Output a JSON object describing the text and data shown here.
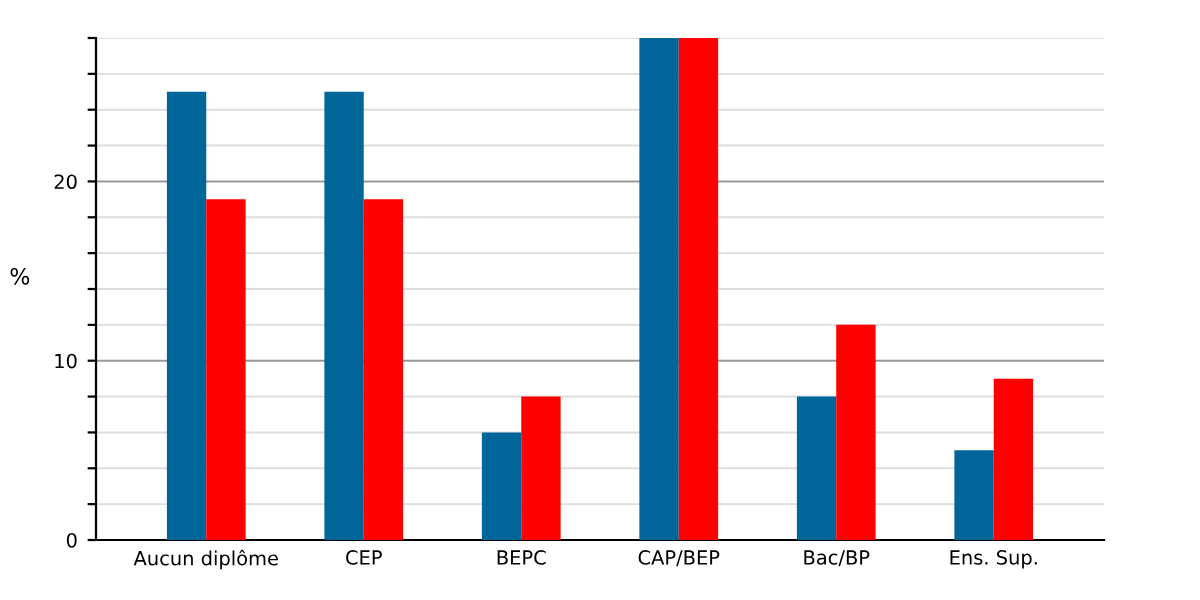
{
  "chart_data": {
    "type": "bar",
    "ylabel": "%",
    "categories": [
      "Aucun diplôme",
      "CEP",
      "BEPC",
      "CAP/BEP",
      "Bac/BP",
      "Ens. Sup."
    ],
    "series": [
      {
        "color": "#006699",
        "values": [
          25,
          25,
          6,
          28,
          8,
          5
        ]
      },
      {
        "color": "#ff0000",
        "values": [
          19,
          19,
          8,
          28,
          12,
          9
        ]
      }
    ],
    "ylim": [
      0,
      28
    ],
    "yticks": [
      0,
      {
        "value": 2,
        "label": null
      },
      {
        "value": 4,
        "label": null
      },
      {
        "value": 6,
        "label": null
      },
      {
        "value": 8,
        "label": null
      },
      10,
      {
        "value": 12,
        "label": null
      },
      {
        "value": 14,
        "label": null
      },
      {
        "value": 16,
        "label": null
      },
      {
        "value": 18,
        "label": null
      },
      20,
      {
        "value": 22,
        "label": null
      },
      {
        "value": 24,
        "label": null
      },
      {
        "value": 26,
        "label": null
      },
      {
        "value": 28,
        "label": null
      }
    ],
    "grid": "y",
    "legend": false
  }
}
